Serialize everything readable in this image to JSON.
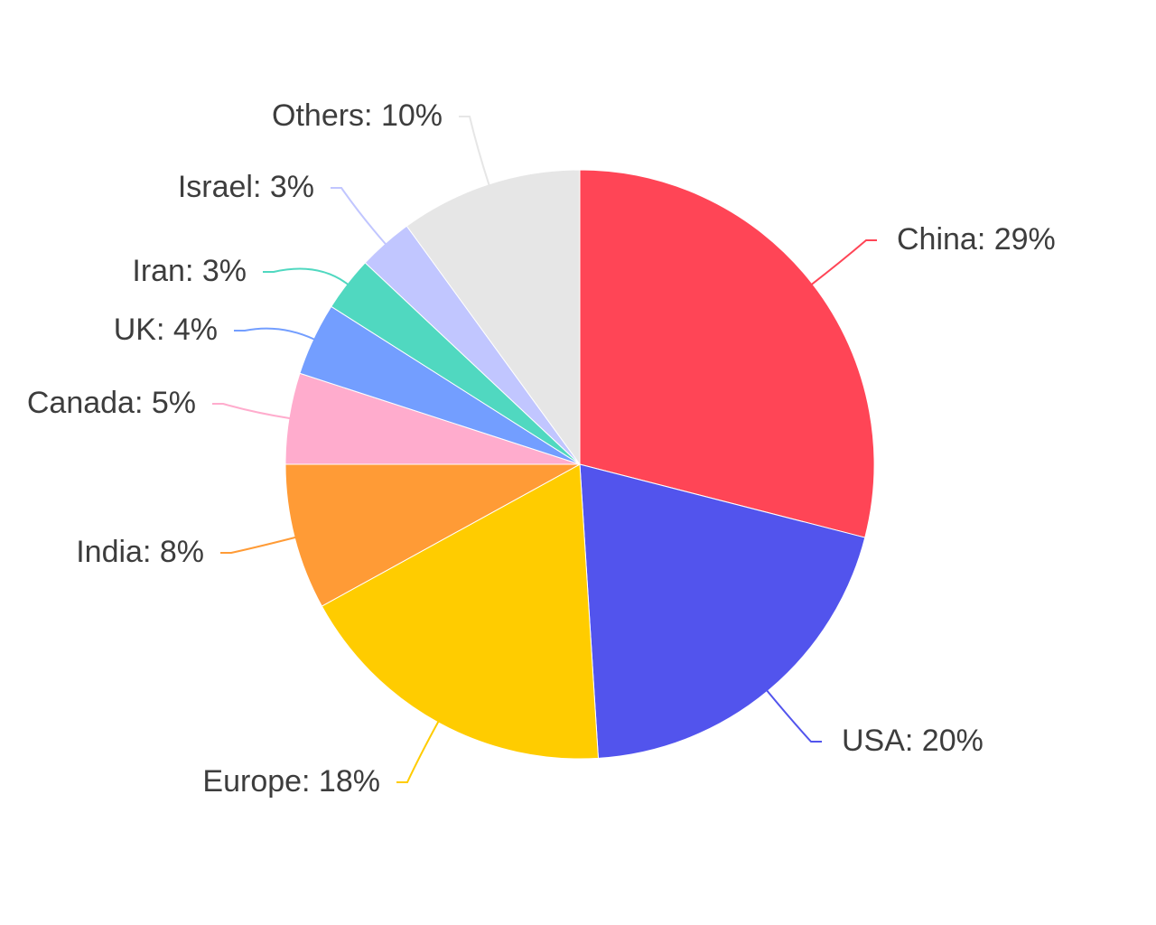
{
  "chart_data": {
    "type": "pie",
    "slices": [
      {
        "label": "China",
        "value": 29,
        "display": "China: 29%",
        "color": "#ff4556"
      },
      {
        "label": "USA",
        "value": 20,
        "display": "USA: 20%",
        "color": "#5254ed"
      },
      {
        "label": "Europe",
        "value": 18,
        "display": "Europe: 18%",
        "color": "#ffcc00"
      },
      {
        "label": "India",
        "value": 8,
        "display": "India: 8%",
        "color": "#ff9b36"
      },
      {
        "label": "Canada",
        "value": 5,
        "display": "Canada: 5%",
        "color": "#ffaccd"
      },
      {
        "label": "UK",
        "value": 4,
        "display": "UK: 4%",
        "color": "#739eff"
      },
      {
        "label": "Iran",
        "value": 3,
        "display": "Iran: 3%",
        "color": "#50d8c0"
      },
      {
        "label": "Israel",
        "value": 3,
        "display": "Israel: 3%",
        "color": "#c1c6ff"
      },
      {
        "label": "Others",
        "value": 10,
        "display": "Others: 10%",
        "color": "#e6e6e6"
      }
    ],
    "start_angle": "12 o'clock",
    "direction": "clockwise",
    "labels": "outside with leader lines"
  }
}
